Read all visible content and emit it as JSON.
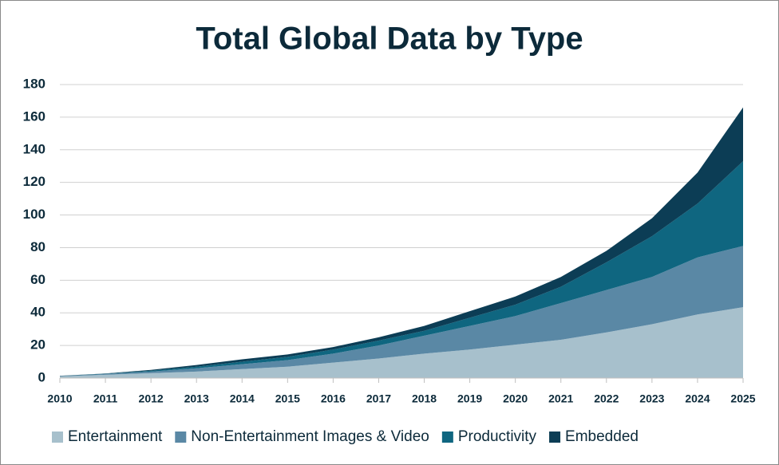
{
  "chart_data": {
    "type": "stacked_area",
    "title": "Total Global Data by Type",
    "categories": [
      "2010",
      "2011",
      "2012",
      "2013",
      "2014",
      "2015",
      "2016",
      "2017",
      "2018",
      "2019",
      "2020",
      "2021",
      "2022",
      "2023",
      "2024",
      "2025"
    ],
    "series": [
      {
        "name": "Entertainment",
        "color": "#a7c0cc",
        "values": [
          1,
          2,
          3,
          4,
          5.5,
          7,
          9.5,
          12,
          15,
          17.5,
          20.5,
          23.5,
          28,
          33,
          39,
          43.5
        ]
      },
      {
        "name": "Non-Entertainment Images & Video",
        "color": "#5a88a5",
        "values": [
          0.2,
          0.5,
          1,
          2,
          3,
          4,
          5.5,
          8,
          11,
          14.5,
          17.5,
          22.5,
          26,
          29,
          35,
          37.5
        ]
      },
      {
        "name": "Productivity",
        "color": "#0f6680",
        "values": [
          0.1,
          0.2,
          0.5,
          1,
          1.5,
          2,
          2.5,
          3,
          3,
          5,
          7,
          10,
          17,
          25,
          33,
          52
        ]
      },
      {
        "name": "Embedded",
        "color": "#0c3d55",
        "values": [
          0.1,
          0.1,
          0.5,
          1,
          1.5,
          1.5,
          1.5,
          2,
          3,
          4,
          5,
          6,
          7,
          11,
          19,
          33
        ]
      }
    ],
    "ylim": [
      0,
      180
    ],
    "yticks": [
      0,
      20,
      40,
      60,
      80,
      100,
      120,
      140,
      160,
      180
    ],
    "grid": true,
    "legend": "bottom"
  }
}
